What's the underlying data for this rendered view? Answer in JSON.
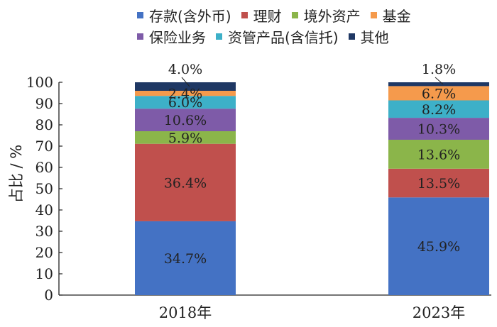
{
  "chart_data": {
    "type": "bar",
    "stacked": true,
    "categories": [
      "2018年",
      "2023年"
    ],
    "ylabel": "占比 / %",
    "ylim": [
      0,
      100
    ],
    "yticks": [
      0,
      10,
      20,
      30,
      40,
      50,
      60,
      70,
      80,
      90,
      100
    ],
    "legend_position": "top",
    "series": [
      {
        "name": "存款(含外币)",
        "color": "#4472C4",
        "values": [
          34.7,
          45.9
        ],
        "labels": [
          "34.7%",
          "45.9%"
        ]
      },
      {
        "name": "理财",
        "color": "#C0504D",
        "values": [
          36.4,
          13.5
        ],
        "labels": [
          "36.4%",
          "13.5%"
        ]
      },
      {
        "name": "境外资产",
        "color": "#8BB54A",
        "values": [
          5.9,
          13.6
        ],
        "labels": [
          "5.9%",
          "13.6%"
        ]
      },
      {
        "name": "保险业务",
        "color": "#7E5BA8",
        "values": [
          10.6,
          10.3
        ],
        "labels": [
          "10.6%",
          "10.3%"
        ]
      },
      {
        "name": "资管产品(含信托)",
        "color": "#3DB0C8",
        "values": [
          6.0,
          8.2
        ],
        "labels": [
          "6.0%",
          "8.2%"
        ]
      },
      {
        "name": "基金",
        "color": "#F59A4C",
        "values": [
          2.4,
          6.7
        ],
        "labels": [
          "2.4%",
          "6.7%"
        ]
      },
      {
        "name": "其他",
        "color": "#1F3864",
        "values": [
          4.0,
          1.8
        ],
        "labels": [
          "4.0%",
          "1.8%"
        ]
      }
    ]
  },
  "legend": {
    "rows": [
      [
        0,
        1,
        2,
        5
      ],
      [
        3,
        4,
        6
      ]
    ]
  }
}
